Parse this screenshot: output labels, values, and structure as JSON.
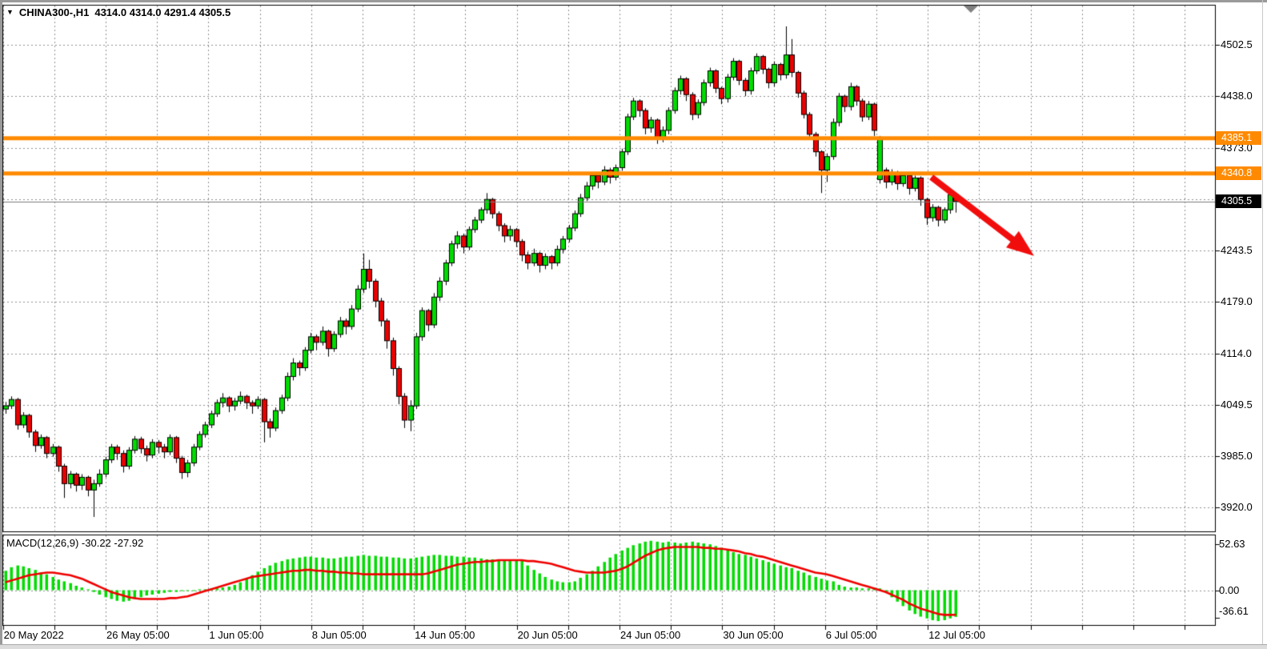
{
  "window": {
    "symbol": "CHINA300-,H1",
    "ohlc_readout": "4314.0 4314.0 4291.4 4305.5",
    "dropdown_icon": "▼"
  },
  "colors": {
    "candle_up": "#00DC00",
    "candle_down": "#EA0000",
    "candle_border": "#000000",
    "grid": "#909090",
    "level_line": "#FF8A00",
    "bid_line": "#7a7a7a",
    "arrow": "#F20D0D",
    "macd_histogram": "#00DC00",
    "macd_signal": "#F00000",
    "badge_level_bg": "#FF8A00",
    "badge_bid_bg": "#000000",
    "shift_marker": "#808080"
  },
  "chart_data": {
    "type": "candlestick+macd",
    "title": "CHINA300-,H1",
    "timeframe": "H1",
    "current_ohlc": {
      "open": 4314.0,
      "high": 4314.0,
      "low": 4291.4,
      "close": 4305.5
    },
    "y_axis": {
      "labels": [
        {
          "t": "4502.5",
          "p": 4502.5
        },
        {
          "t": "4438.0",
          "p": 4438.0
        },
        {
          "t": "4373.0",
          "p": 4373.0
        },
        {
          "t": "4243.5",
          "p": 4243.5
        },
        {
          "t": "4179.0",
          "p": 4179.0
        },
        {
          "t": "4114.0",
          "p": 4114.0
        },
        {
          "t": "4049.5",
          "p": 4049.5
        },
        {
          "t": "3985.0",
          "p": 3985.0
        },
        {
          "t": "3920.0",
          "p": 3920.0
        }
      ],
      "grid_prices": [
        4502.5,
        4438.0,
        4373.0,
        4308.5,
        4243.5,
        4179.0,
        4114.0,
        4049.5,
        3985.0,
        3920.0
      ]
    },
    "x_axis": {
      "labels": [
        {
          "t": "20 May 2022",
          "grid_index": 0
        },
        {
          "t": "26 May 05:00",
          "grid_index": 2
        },
        {
          "t": "1 Jun 05:00",
          "grid_index": 4
        },
        {
          "t": "8 Jun 05:00",
          "grid_index": 6
        },
        {
          "t": "14 Jun 05:00",
          "grid_index": 8
        },
        {
          "t": "20 Jun 05:00",
          "grid_index": 10
        },
        {
          "t": "24 Jun 05:00",
          "grid_index": 12
        },
        {
          "t": "30 Jun 05:00",
          "grid_index": 14
        },
        {
          "t": "6 Jul 05:00",
          "grid_index": 16
        },
        {
          "t": "12 Jul 05:00",
          "grid_index": 18
        }
      ]
    },
    "levels": [
      {
        "price": 4385.1,
        "label": "4385.1",
        "style": "level"
      },
      {
        "price": 4340.8,
        "label": "4340.8",
        "style": "level"
      }
    ],
    "bid": {
      "price": 4305.5,
      "label": "4305.5"
    },
    "arrow": {
      "from_bar": 157.8,
      "from_price": 4336,
      "to_bar": 175.3,
      "to_price": 4237
    },
    "candles": [
      [
        4044,
        4053,
        4038,
        4048
      ],
      [
        4048,
        4060,
        4044,
        4056
      ],
      [
        4056,
        4058,
        4018,
        4024
      ],
      [
        4024,
        4040,
        4020,
        4036
      ],
      [
        4036,
        4038,
        4008,
        4015
      ],
      [
        4015,
        4018,
        3990,
        3998
      ],
      [
        3998,
        4012,
        3994,
        4008
      ],
      [
        4008,
        4010,
        3982,
        3988
      ],
      [
        3988,
        4000,
        3984,
        3996
      ],
      [
        3996,
        3998,
        3965,
        3972
      ],
      [
        3972,
        3975,
        3932,
        3950
      ],
      [
        3950,
        3966,
        3944,
        3962
      ],
      [
        3962,
        3964,
        3940,
        3948
      ],
      [
        3948,
        3962,
        3942,
        3958
      ],
      [
        3958,
        3960,
        3934,
        3942
      ],
      [
        3942,
        3955,
        3908,
        3950
      ],
      [
        3950,
        3968,
        3946,
        3962
      ],
      [
        3962,
        3984,
        3958,
        3980
      ],
      [
        3980,
        4000,
        3976,
        3996
      ],
      [
        3996,
        3999,
        3980,
        3988
      ],
      [
        3988,
        3992,
        3964,
        3972
      ],
      [
        3972,
        3996,
        3968,
        3992
      ],
      [
        3992,
        4010,
        3988,
        4006
      ],
      [
        4006,
        4009,
        3988,
        3994
      ],
      [
        3994,
        3998,
        3978,
        3986
      ],
      [
        3986,
        4006,
        3982,
        4002
      ],
      [
        4002,
        4005,
        3988,
        3996
      ],
      [
        3996,
        4000,
        3982,
        3990
      ],
      [
        3990,
        4012,
        3986,
        4008
      ],
      [
        4008,
        4010,
        3976,
        3982
      ],
      [
        3982,
        3985,
        3956,
        3964
      ],
      [
        3964,
        3980,
        3958,
        3976
      ],
      [
        3976,
        4000,
        3972,
        3996
      ],
      [
        3996,
        4016,
        3992,
        4012
      ],
      [
        4012,
        4028,
        4008,
        4024
      ],
      [
        4024,
        4042,
        4020,
        4038
      ],
      [
        4038,
        4056,
        4034,
        4052
      ],
      [
        4052,
        4064,
        4046,
        4058
      ],
      [
        4058,
        4060,
        4040,
        4048
      ],
      [
        4048,
        4058,
        4042,
        4054
      ],
      [
        4054,
        4066,
        4050,
        4060
      ],
      [
        4060,
        4062,
        4044,
        4052
      ],
      [
        4052,
        4055,
        4038,
        4048
      ],
      [
        4048,
        4060,
        4044,
        4056
      ],
      [
        4056,
        4058,
        4002,
        4028
      ],
      [
        4028,
        4032,
        4008,
        4020
      ],
      [
        4020,
        4046,
        4016,
        4042
      ],
      [
        4042,
        4062,
        4038,
        4058
      ],
      [
        4058,
        4090,
        4054,
        4085
      ],
      [
        4085,
        4108,
        4080,
        4102
      ],
      [
        4102,
        4105,
        4086,
        4096
      ],
      [
        4096,
        4122,
        4092,
        4118
      ],
      [
        4118,
        4140,
        4114,
        4135
      ],
      [
        4135,
        4138,
        4118,
        4128
      ],
      [
        4128,
        4148,
        4124,
        4142
      ],
      [
        4142,
        4144,
        4110,
        4120
      ],
      [
        4120,
        4142,
        4116,
        4138
      ],
      [
        4138,
        4160,
        4134,
        4155
      ],
      [
        4155,
        4158,
        4138,
        4148
      ],
      [
        4148,
        4175,
        4144,
        4170
      ],
      [
        4170,
        4200,
        4166,
        4195
      ],
      [
        4195,
        4240,
        4190,
        4220
      ],
      [
        4220,
        4232,
        4196,
        4205
      ],
      [
        4205,
        4208,
        4172,
        4180
      ],
      [
        4180,
        4184,
        4148,
        4155
      ],
      [
        4155,
        4158,
        4120,
        4130
      ],
      [
        4130,
        4134,
        4086,
        4095
      ],
      [
        4095,
        4098,
        4050,
        4060
      ],
      [
        4060,
        4064,
        4020,
        4030
      ],
      [
        4030,
        4055,
        4016,
        4048
      ],
      [
        4048,
        4140,
        4044,
        4135
      ],
      [
        4135,
        4172,
        4130,
        4168
      ],
      [
        4168,
        4170,
        4142,
        4150
      ],
      [
        4150,
        4190,
        4146,
        4185
      ],
      [
        4185,
        4210,
        4180,
        4205
      ],
      [
        4205,
        4232,
        4200,
        4228
      ],
      [
        4228,
        4256,
        4224,
        4252
      ],
      [
        4252,
        4268,
        4246,
        4262
      ],
      [
        4262,
        4265,
        4240,
        4248
      ],
      [
        4248,
        4274,
        4244,
        4270
      ],
      [
        4270,
        4286,
        4266,
        4282
      ],
      [
        4282,
        4298,
        4278,
        4295
      ],
      [
        4295,
        4316,
        4290,
        4308
      ],
      [
        4308,
        4310,
        4284,
        4290
      ],
      [
        4290,
        4293,
        4268,
        4275
      ],
      [
        4275,
        4278,
        4254,
        4262
      ],
      [
        4262,
        4275,
        4256,
        4270
      ],
      [
        4270,
        4272,
        4248,
        4255
      ],
      [
        4255,
        4258,
        4230,
        4238
      ],
      [
        4238,
        4242,
        4220,
        4228
      ],
      [
        4228,
        4246,
        4224,
        4240
      ],
      [
        4240,
        4242,
        4216,
        4225
      ],
      [
        4225,
        4240,
        4220,
        4236
      ],
      [
        4236,
        4238,
        4220,
        4228
      ],
      [
        4228,
        4250,
        4224,
        4245
      ],
      [
        4245,
        4262,
        4240,
        4258
      ],
      [
        4258,
        4276,
        4254,
        4272
      ],
      [
        4272,
        4294,
        4268,
        4290
      ],
      [
        4290,
        4315,
        4286,
        4310
      ],
      [
        4310,
        4330,
        4306,
        4325
      ],
      [
        4325,
        4342,
        4320,
        4338
      ],
      [
        4338,
        4340,
        4322,
        4330
      ],
      [
        4330,
        4350,
        4326,
        4345
      ],
      [
        4345,
        4348,
        4328,
        4336
      ],
      [
        4336,
        4352,
        4332,
        4348
      ],
      [
        4348,
        4372,
        4344,
        4368
      ],
      [
        4368,
        4416,
        4364,
        4412
      ],
      [
        4412,
        4436,
        4408,
        4432
      ],
      [
        4432,
        4434,
        4412,
        4420
      ],
      [
        4420,
        4423,
        4390,
        4398
      ],
      [
        4398,
        4412,
        4392,
        4408
      ],
      [
        4408,
        4410,
        4378,
        4385
      ],
      [
        4385,
        4400,
        4380,
        4395
      ],
      [
        4395,
        4424,
        4390,
        4420
      ],
      [
        4420,
        4449,
        4416,
        4445
      ],
      [
        4445,
        4464,
        4440,
        4460
      ],
      [
        4460,
        4462,
        4432,
        4440
      ],
      [
        4440,
        4443,
        4408,
        4415
      ],
      [
        4415,
        4434,
        4410,
        4430
      ],
      [
        4430,
        4459,
        4426,
        4455
      ],
      [
        4455,
        4474,
        4450,
        4470
      ],
      [
        4470,
        4472,
        4442,
        4448
      ],
      [
        4448,
        4450,
        4428,
        4435
      ],
      [
        4435,
        4466,
        4430,
        4462
      ],
      [
        4462,
        4486,
        4458,
        4482
      ],
      [
        4482,
        4484,
        4452,
        4458
      ],
      [
        4458,
        4461,
        4438,
        4445
      ],
      [
        4445,
        4474,
        4440,
        4470
      ],
      [
        4470,
        4492,
        4466,
        4488
      ],
      [
        4488,
        4490,
        4466,
        4472
      ],
      [
        4472,
        4474,
        4448,
        4455
      ],
      [
        4455,
        4482,
        4450,
        4478
      ],
      [
        4478,
        4480,
        4458,
        4465
      ],
      [
        4465,
        4526,
        4460,
        4490
      ],
      [
        4490,
        4510,
        4462,
        4468
      ],
      [
        4468,
        4470,
        4436,
        4442
      ],
      [
        4442,
        4445,
        4410,
        4415
      ],
      [
        4415,
        4418,
        4384,
        4390
      ],
      [
        4390,
        4393,
        4362,
        4368
      ],
      [
        4368,
        4370,
        4316,
        4345
      ],
      [
        4345,
        4366,
        4330,
        4362
      ],
      [
        4362,
        4410,
        4358,
        4405
      ],
      [
        4405,
        4442,
        4400,
        4438
      ],
      [
        4438,
        4440,
        4418,
        4425
      ],
      [
        4425,
        4455,
        4420,
        4450
      ],
      [
        4450,
        4452,
        4426,
        4432
      ],
      [
        4432,
        4435,
        4406,
        4412
      ],
      [
        4412,
        4432,
        4408,
        4428
      ],
      [
        4428,
        4430,
        4388,
        4395
      ],
      [
        4333,
        4388,
        4328,
        4384
      ],
      [
        4345,
        4348,
        4322,
        4330
      ],
      [
        4330,
        4346,
        4326,
        4342
      ],
      [
        4342,
        4344,
        4320,
        4328
      ],
      [
        4328,
        4342,
        4324,
        4338
      ],
      [
        4338,
        4340,
        4314,
        4322
      ],
      [
        4322,
        4338,
        4318,
        4335
      ],
      [
        4335,
        4337,
        4300,
        4308
      ],
      [
        4308,
        4310,
        4276,
        4285
      ],
      [
        4285,
        4302,
        4280,
        4298
      ],
      [
        4298,
        4300,
        4274,
        4282
      ],
      [
        4282,
        4298,
        4278,
        4295
      ],
      [
        4295,
        4318,
        4290,
        4314
      ],
      [
        4314,
        4314,
        4291.4,
        4305.5
      ]
    ],
    "macd": {
      "label": "MACD(12,26,9) -30.22 -27.92",
      "params": "12,26,9",
      "current_macd": -30.22,
      "current_signal": -27.92,
      "axis_labels": [
        {
          "t": "52.63",
          "v": 52.63
        },
        {
          "t": "0.00",
          "v": 0
        },
        {
          "t": "-36.61",
          "v": -36.61
        }
      ],
      "histogram": [
        22,
        26,
        28,
        27,
        25,
        23,
        20,
        18,
        15,
        12,
        10,
        8,
        5,
        3,
        1,
        -2,
        -5,
        -8,
        -10,
        -12,
        -13,
        -12,
        -10,
        -8,
        -6,
        -5,
        -4,
        -3,
        -2,
        -2,
        -1,
        -1,
        0,
        1,
        1,
        2,
        2,
        3,
        4,
        6,
        9,
        13,
        17,
        21,
        25,
        28,
        31,
        33,
        35,
        36,
        37,
        38,
        38,
        37,
        37,
        36,
        36,
        37,
        38,
        38,
        39,
        40,
        39,
        39,
        38,
        38,
        37,
        37,
        36,
        36,
        37,
        38,
        39,
        40,
        40,
        39,
        39,
        38,
        38,
        37,
        37,
        36,
        35,
        35,
        34,
        34,
        34,
        34,
        34,
        28,
        23,
        19,
        15,
        12,
        10,
        9,
        9,
        10,
        14,
        18,
        22,
        27,
        32,
        37,
        41,
        45,
        48,
        51,
        53,
        55,
        56,
        55,
        54,
        55,
        54,
        53,
        54,
        55,
        54,
        53,
        52,
        50,
        48,
        45,
        43,
        41,
        40,
        38,
        36,
        34,
        32,
        30,
        28,
        26,
        25,
        22,
        20,
        17,
        15,
        13,
        11,
        10,
        6,
        4,
        3,
        3,
        2,
        2,
        3,
        2,
        -2,
        -8,
        -13,
        -18,
        -23,
        -27,
        -30,
        -32,
        -34,
        -35,
        -34,
        -32,
        -30.22
      ],
      "signal": [
        9,
        11,
        13,
        15,
        17,
        18,
        19,
        20,
        20,
        19,
        18,
        17,
        15,
        13,
        10,
        7,
        4,
        1,
        -2,
        -4,
        -6,
        -8,
        -9,
        -10,
        -10,
        -10,
        -10,
        -10,
        -9,
        -9,
        -8,
        -7,
        -5,
        -3,
        -1,
        1,
        3,
        5,
        7,
        9,
        11,
        13,
        15,
        16,
        17,
        18,
        19,
        20,
        21,
        22,
        22,
        23,
        23,
        22,
        22,
        21,
        21,
        20,
        20,
        19,
        19,
        18,
        18,
        18,
        18,
        18,
        18,
        18,
        18,
        18,
        18,
        18,
        19,
        21,
        23,
        25,
        27,
        29,
        30,
        31,
        32,
        32,
        33,
        33,
        34,
        34,
        34,
        34,
        34,
        33,
        33,
        32,
        31,
        30,
        28,
        26,
        24,
        22,
        21,
        20,
        20,
        20,
        20,
        21,
        22,
        24,
        27,
        31,
        35,
        39,
        42,
        45,
        47,
        48,
        49,
        49,
        49,
        49,
        49,
        48,
        48,
        47,
        47,
        46,
        45,
        44,
        42,
        41,
        39,
        38,
        36,
        34,
        32,
        30,
        28,
        26,
        24,
        22,
        20,
        19,
        18,
        16,
        14,
        12,
        10,
        8,
        6,
        4,
        2,
        0,
        -2,
        -5,
        -8,
        -11,
        -15,
        -18,
        -21,
        -23,
        -25,
        -27,
        -28,
        -28,
        -27.92
      ]
    }
  }
}
